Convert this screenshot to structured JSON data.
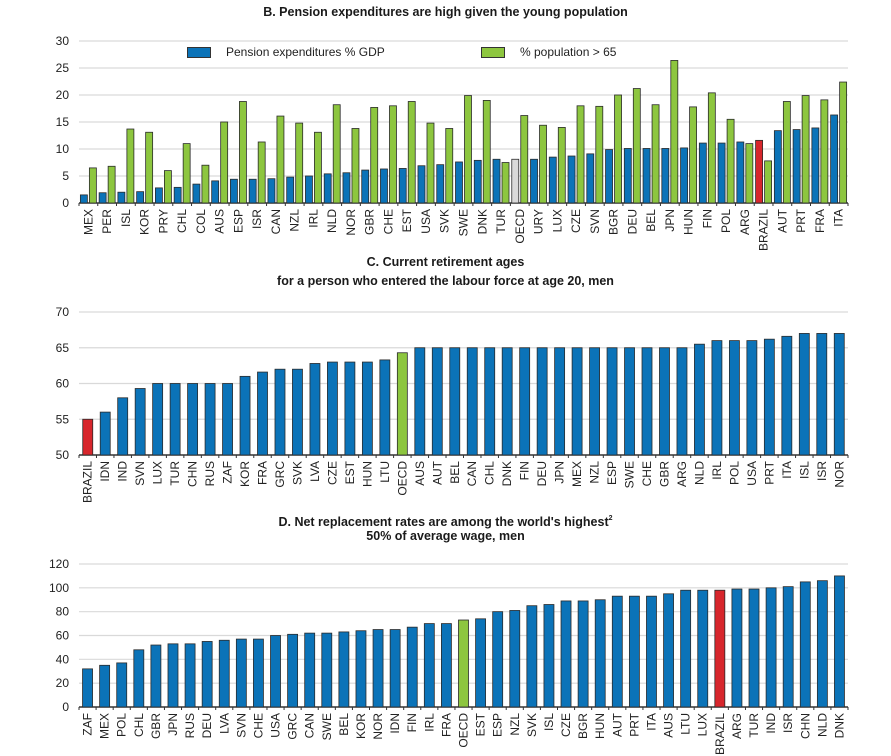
{
  "colors": {
    "blue": "#0b73b8",
    "green": "#8dc63f",
    "red": "#d7262c",
    "oecd_grey": "#d9d9d9",
    "grid": "#d9d9d9",
    "bar_stroke": "#2b2b2b"
  },
  "chart_data": [
    {
      "id": "B",
      "type": "bar",
      "title": "B. Pension expenditures are high given the young population",
      "xlabel": "",
      "ylabel": "",
      "ylim": [
        0,
        30
      ],
      "yticks": [
        0,
        5,
        10,
        15,
        20,
        25,
        30
      ],
      "grid": true,
      "legend_position": "top",
      "categories": [
        "MEX",
        "PER",
        "ISL",
        "KOR",
        "PRY",
        "CHL",
        "COL",
        "AUS",
        "ESP",
        "ISR",
        "CAN",
        "NZL",
        "IRL",
        "NLD",
        "NOR",
        "GBR",
        "CHE",
        "EST",
        "USA",
        "SVK",
        "SWE",
        "DNK",
        "TUR",
        "OECD",
        "URY",
        "LUX",
        "CZE",
        "SVN",
        "BGR",
        "DEU",
        "BEL",
        "JPN",
        "HUN",
        "FIN",
        "POL",
        "ARG",
        "BRAZIL",
        "AUT",
        "PRT",
        "FRA",
        "ITA"
      ],
      "highlight": {
        "OECD": "oecd_grey",
        "BRAZIL": "red"
      },
      "series": [
        {
          "name": "Pension expenditures % GDP",
          "color_key": "blue",
          "values": [
            1.5,
            1.9,
            2.0,
            2.1,
            2.8,
            2.9,
            3.5,
            4.1,
            4.4,
            4.4,
            4.5,
            4.8,
            5.0,
            5.4,
            5.6,
            6.1,
            6.3,
            6.4,
            6.9,
            7.1,
            7.6,
            7.9,
            8.1,
            8.1,
            8.1,
            8.5,
            8.7,
            9.1,
            9.9,
            10.1,
            10.1,
            10.1,
            10.2,
            11.1,
            11.1,
            11.3,
            11.6,
            13.4,
            13.6,
            13.9,
            16.3
          ]
        },
        {
          "name": "% population > 65",
          "color_key": "green",
          "values": [
            6.5,
            6.8,
            13.7,
            13.1,
            6.0,
            11.0,
            7.0,
            15.0,
            18.8,
            11.3,
            16.1,
            14.8,
            13.1,
            18.2,
            13.8,
            17.7,
            18.0,
            18.8,
            14.8,
            13.8,
            19.9,
            19.0,
            7.5,
            16.2,
            14.4,
            14.0,
            18.0,
            17.9,
            20.0,
            21.2,
            18.2,
            26.4,
            17.8,
            20.4,
            15.5,
            11.0,
            7.8,
            18.8,
            19.9,
            19.1,
            22.4
          ]
        }
      ]
    },
    {
      "id": "C",
      "type": "bar",
      "title": "C.   Current retirement ages",
      "subtitle": "for a person who entered the labour force at age 20, men",
      "xlabel": "",
      "ylabel": "",
      "ylim": [
        50,
        70
      ],
      "yticks": [
        50,
        55,
        60,
        65,
        70
      ],
      "grid": true,
      "categories": [
        "BRAZIL",
        "IDN",
        "IND",
        "SVN",
        "LUX",
        "TUR",
        "CHN",
        "RUS",
        "ZAF",
        "KOR",
        "FRA",
        "GRC",
        "SVK",
        "LVA",
        "CZE",
        "EST",
        "HUN",
        "LTU",
        "OECD",
        "AUS",
        "AUT",
        "BEL",
        "CAN",
        "CHL",
        "DNK",
        "FIN",
        "DEU",
        "JPN",
        "MEX",
        "NZL",
        "ESP",
        "SWE",
        "CHE",
        "GBR",
        "ARG",
        "NLD",
        "IRL",
        "POL",
        "USA",
        "PRT",
        "ITA",
        "ISL",
        "ISR",
        "NOR"
      ],
      "highlight": {
        "BRAZIL": "red",
        "OECD": "green"
      },
      "series": [
        {
          "name": "Retirement age",
          "color_key": "blue",
          "values": [
            55,
            56,
            58,
            59.3,
            60,
            60,
            60,
            60,
            60,
            61,
            61.6,
            62,
            62,
            62.8,
            63,
            63,
            63,
            63.3,
            64.3,
            65,
            65,
            65,
            65,
            65,
            65,
            65,
            65,
            65,
            65,
            65,
            65,
            65,
            65,
            65,
            65,
            65.5,
            66,
            66,
            66,
            66.2,
            66.6,
            67,
            67,
            67
          ]
        }
      ]
    },
    {
      "id": "D",
      "type": "bar",
      "title": "D. Net replacement rates are among the world's highest",
      "title_footnote": "2",
      "subtitle": "50% of average wage, men",
      "xlabel": "",
      "ylabel": "",
      "ylim": [
        0,
        120
      ],
      "yticks": [
        0,
        20,
        40,
        60,
        80,
        100,
        120
      ],
      "grid": true,
      "categories": [
        "ZAF",
        "MEX",
        "POL",
        "CHL",
        "GBR",
        "JPN",
        "RUS",
        "DEU",
        "LVA",
        "SVN",
        "CHE",
        "USA",
        "GRC",
        "CAN",
        "SWE",
        "BEL",
        "KOR",
        "NOR",
        "IDN",
        "FIN",
        "IRL",
        "FRA",
        "OECD",
        "EST",
        "ESP",
        "NZL",
        "SVK",
        "ISL",
        "CZE",
        "BGR",
        "HUN",
        "AUT",
        "PRT",
        "ITA",
        "AUS",
        "LTU",
        "LUX",
        "BRAZIL",
        "ARG",
        "TUR",
        "IND",
        "ISR",
        "CHN",
        "NLD",
        "DNK"
      ],
      "highlight": {
        "OECD": "green",
        "BRAZIL": "red"
      },
      "series": [
        {
          "name": "Net replacement rate",
          "color_key": "blue",
          "values": [
            32,
            35,
            37,
            48,
            52,
            53,
            53,
            55,
            56,
            57,
            57,
            60,
            61,
            62,
            62,
            63,
            64,
            65,
            65,
            67,
            70,
            70,
            73,
            74,
            80,
            81,
            85,
            86,
            89,
            89,
            90,
            93,
            93,
            93,
            95,
            98,
            98,
            98,
            99,
            99,
            100,
            101,
            105,
            106,
            110
          ]
        }
      ]
    }
  ]
}
